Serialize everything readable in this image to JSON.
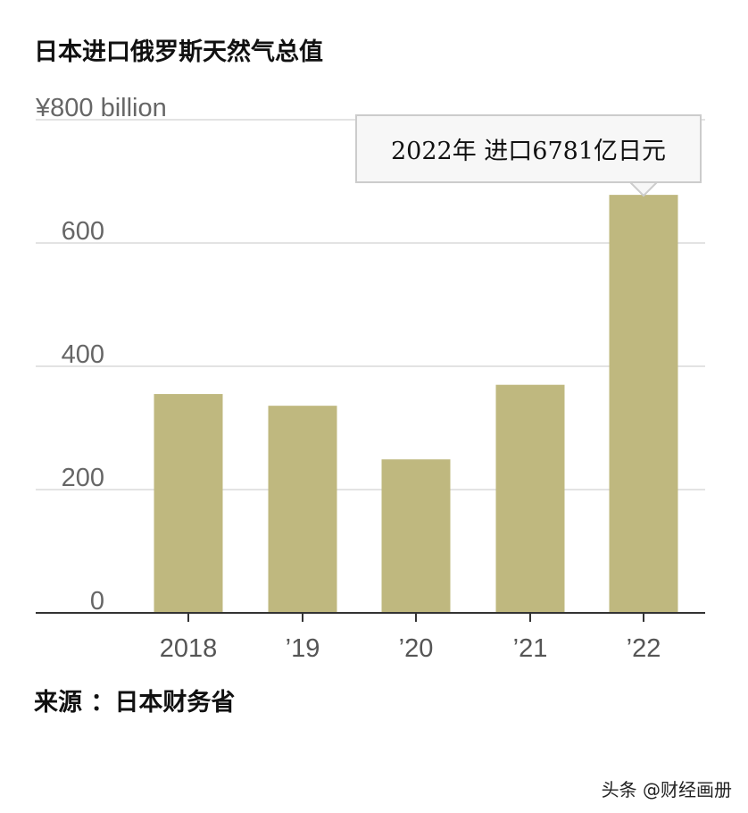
{
  "title": "日本进口俄罗斯天然气总值",
  "source": "来源 ：日本财务省",
  "watermark": "头条 @财经画册",
  "chart_data": {
    "type": "bar",
    "title": "日本进口俄罗斯天然气总值",
    "ylabel": "",
    "xlabel": "",
    "y_unit_label": "¥800 billion",
    "yticks": [
      "0",
      "200",
      "400",
      "600",
      "¥800 billion"
    ],
    "ytick_values": [
      0,
      200,
      400,
      600,
      800
    ],
    "ylim": [
      0,
      800
    ],
    "grid": true,
    "categories": [
      "2018",
      "’19",
      "’20",
      "’21",
      "’22"
    ],
    "values": [
      355,
      336,
      249,
      370,
      678.1
    ],
    "bar_color": "#bfb87f",
    "annotation": "2022年 进口6781亿日元"
  }
}
